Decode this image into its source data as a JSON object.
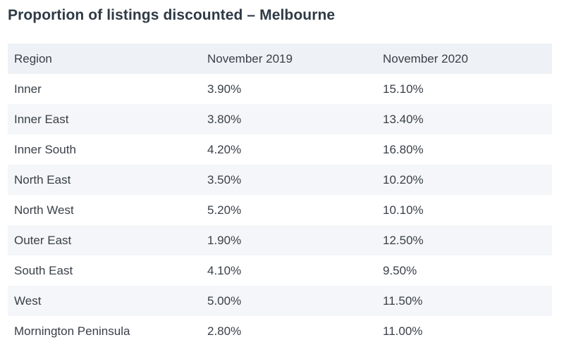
{
  "title": "Proportion of listings discounted – Melbourne",
  "table": {
    "headers": [
      "Region",
      "November 2019",
      "November 2020"
    ],
    "rows": [
      [
        "Inner",
        "3.90%",
        "15.10%"
      ],
      [
        "Inner East",
        "3.80%",
        "13.40%"
      ],
      [
        "Inner South",
        "4.20%",
        "16.80%"
      ],
      [
        "North East",
        "3.50%",
        "10.20%"
      ],
      [
        "North West",
        "5.20%",
        "10.10%"
      ],
      [
        "Outer East",
        "1.90%",
        "12.50%"
      ],
      [
        "South East",
        "4.10%",
        "9.50%"
      ],
      [
        "West",
        "5.00%",
        "11.50%"
      ],
      [
        "Mornington Peninsula",
        "2.80%",
        "11.00%"
      ]
    ]
  },
  "colors": {
    "header_bg": "#eef1f5",
    "stripe_bg": "#f4f6f9",
    "text": "#3a4048",
    "title": "#2f3a45"
  }
}
